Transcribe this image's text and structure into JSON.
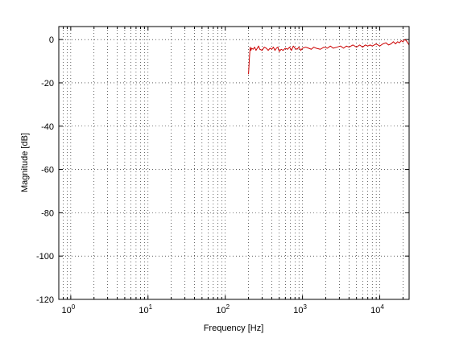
{
  "chart_data": {
    "type": "line",
    "title": "",
    "xlabel": "Frequency [Hz]",
    "ylabel": "Magnitude [dB]",
    "x_scale": "log",
    "xlim": [
      0.7,
      24000
    ],
    "ylim": [
      -120,
      6
    ],
    "grid": true,
    "x_ticks": [
      {
        "value": 1,
        "base": "10",
        "exp": "0"
      },
      {
        "value": 10,
        "base": "10",
        "exp": "1"
      },
      {
        "value": 100,
        "base": "10",
        "exp": "2"
      },
      {
        "value": 1000,
        "base": "10",
        "exp": "3"
      },
      {
        "value": 10000,
        "base": "10",
        "exp": "4"
      }
    ],
    "y_ticks": [
      {
        "value": 0,
        "label": "0"
      },
      {
        "value": -20,
        "label": "-20"
      },
      {
        "value": -40,
        "label": "-40"
      },
      {
        "value": -60,
        "label": "-60"
      },
      {
        "value": -80,
        "label": "-80"
      },
      {
        "value": -100,
        "label": "-100"
      },
      {
        "value": -120,
        "label": "-120"
      }
    ],
    "series": [
      {
        "color": "#cc0000",
        "x": [
          200,
          205,
          210,
          215,
          220,
          230,
          240,
          250,
          260,
          270,
          280,
          300,
          320,
          340,
          360,
          380,
          400,
          420,
          440,
          460,
          480,
          500,
          530,
          560,
          600,
          640,
          680,
          720,
          760,
          800,
          850,
          900,
          950,
          1000,
          1100,
          1200,
          1300,
          1400,
          1500,
          1700,
          1900,
          2100,
          2300,
          2500,
          2800,
          3100,
          3400,
          3700,
          4000,
          4500,
          5000,
          5500,
          6000,
          6500,
          7000,
          7500,
          8000,
          9000,
          10000,
          11000,
          12000,
          13000,
          14000,
          15000,
          16000,
          17000,
          18000,
          19000,
          20000,
          21000,
          22000,
          23000,
          24000
        ],
        "y": [
          -16,
          -9,
          -3.5,
          -5,
          -4,
          -4.5,
          -3.5,
          -5,
          -4,
          -3,
          -4.5,
          -5,
          -3.5,
          -4,
          -5,
          -4,
          -4.5,
          -3.5,
          -5,
          -4,
          -3.5,
          -5.5,
          -4.5,
          -5,
          -4,
          -4.5,
          -3.5,
          -5,
          -3,
          -4,
          -4.5,
          -3.5,
          -5,
          -4,
          -3.5,
          -4,
          -4.5,
          -3.5,
          -4,
          -4.5,
          -3.5,
          -4,
          -3,
          -4,
          -3.5,
          -3,
          -4,
          -3,
          -3.5,
          -2.5,
          -3.5,
          -2.5,
          -3.5,
          -2.5,
          -3,
          -2.5,
          -3,
          -2,
          -3,
          -2,
          -1.5,
          -2.5,
          -2,
          -1,
          -2,
          -1,
          -1.5,
          -0.5,
          -1,
          0,
          -0.5,
          -1.5,
          -2.5
        ]
      }
    ]
  }
}
